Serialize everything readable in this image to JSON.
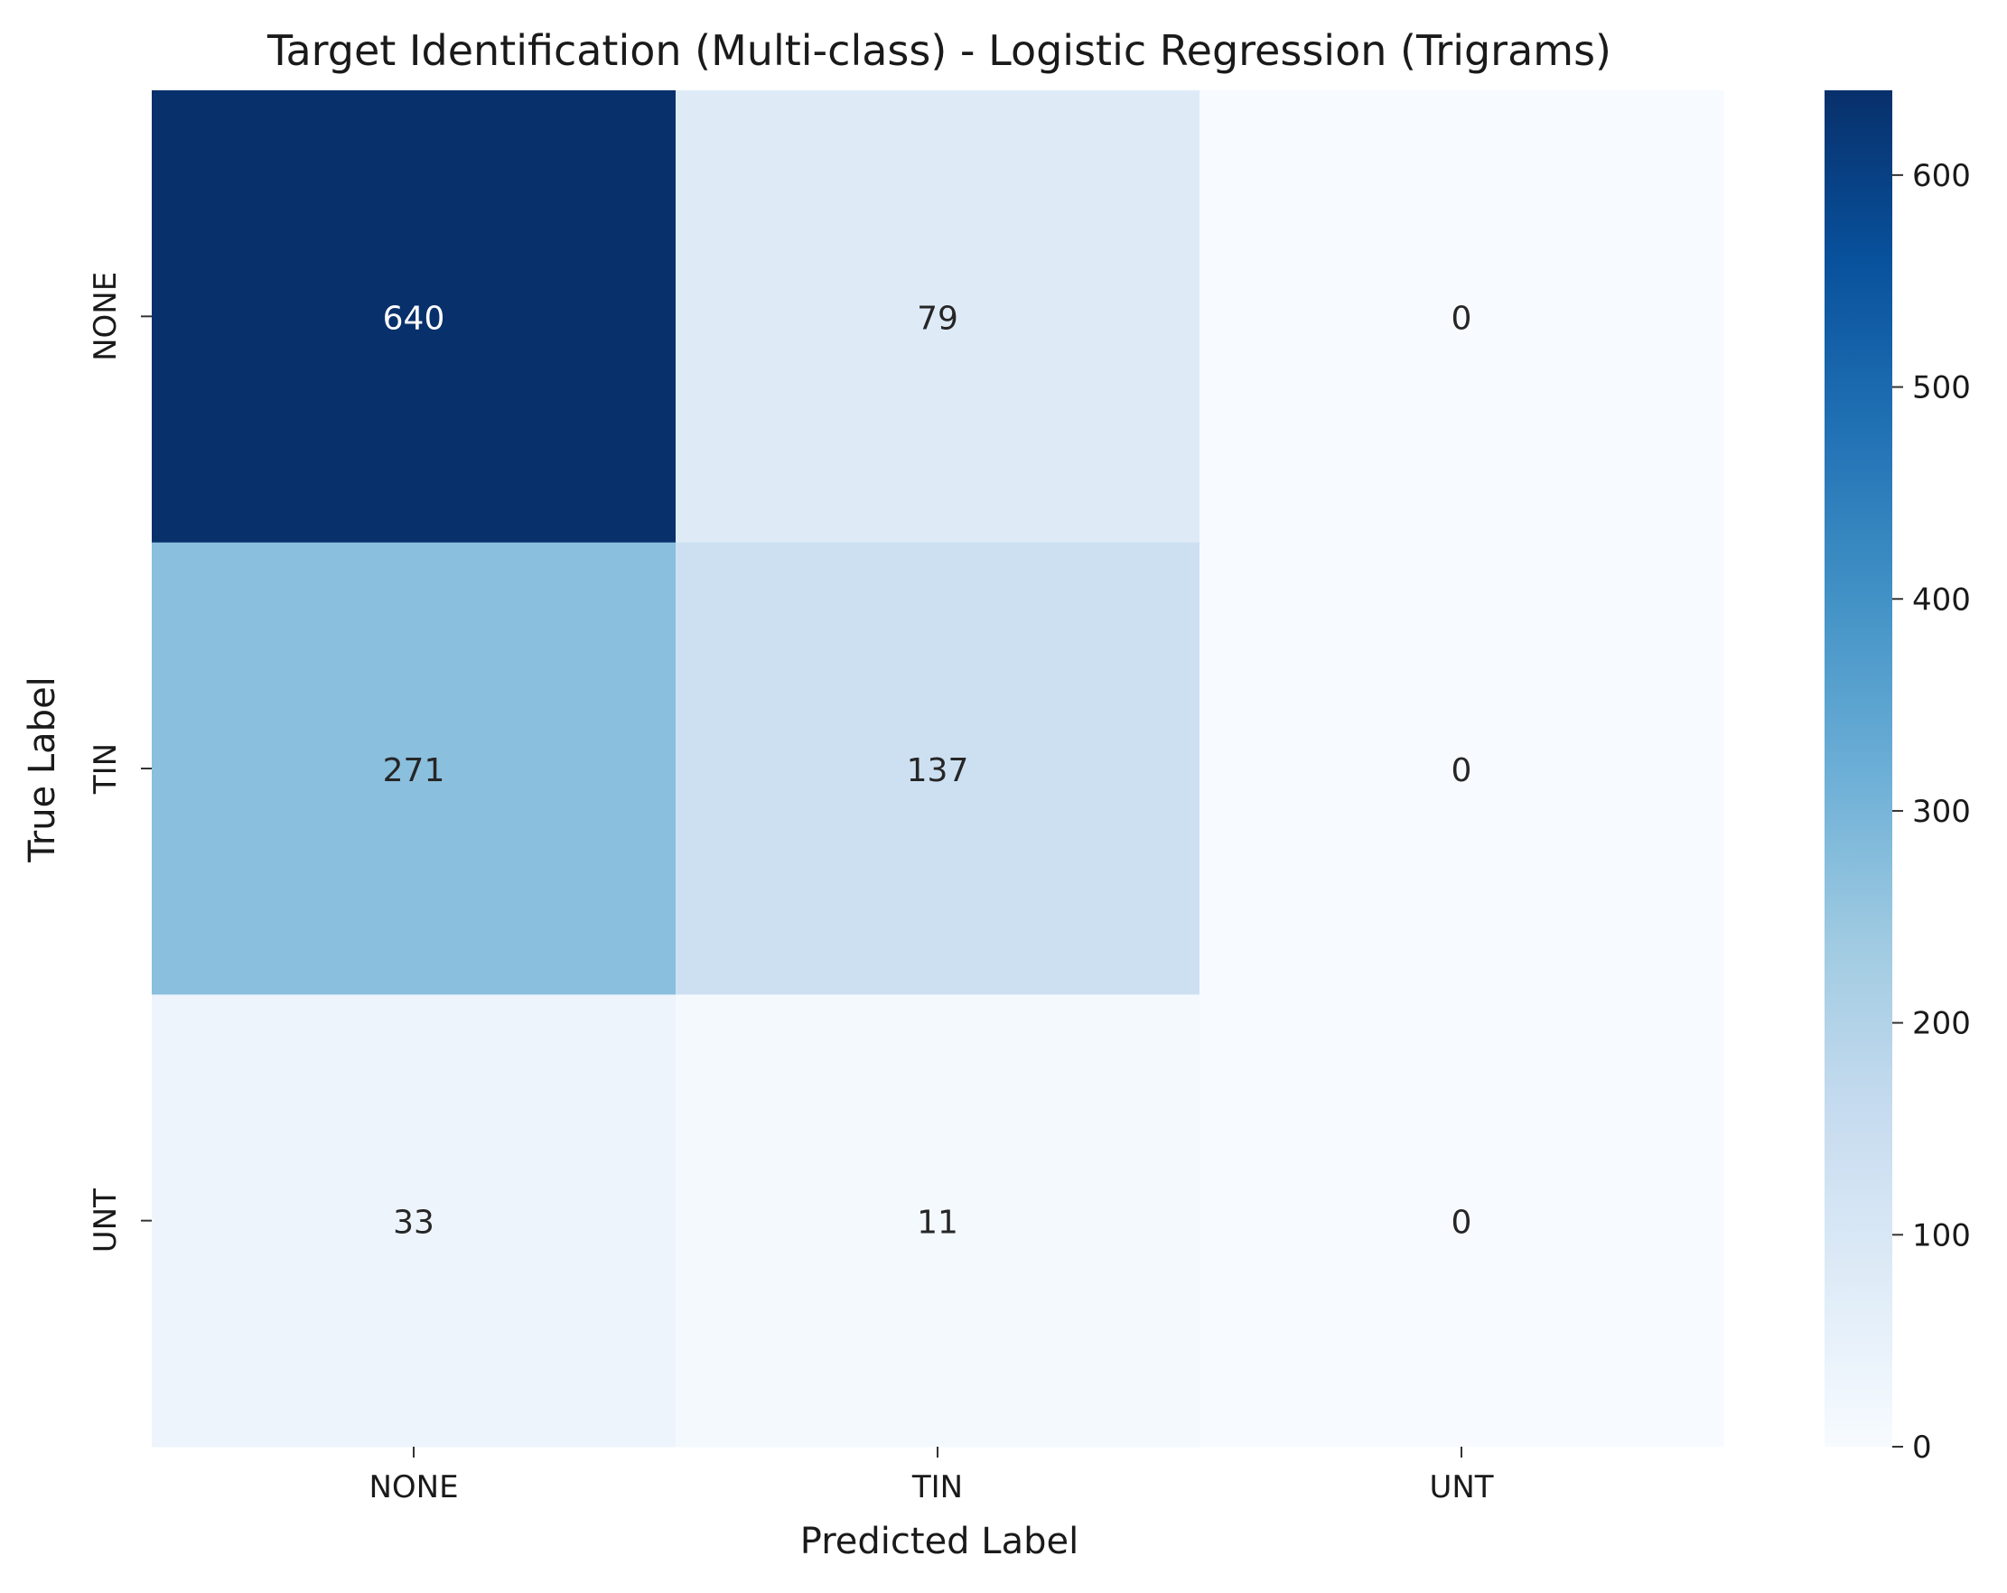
{
  "chart_data": {
    "type": "heatmap",
    "title": "Target Identification (Multi-class) - Logistic Regression (Trigrams)",
    "xlabel": "Predicted Label",
    "ylabel": "True Label",
    "x_categories": [
      "NONE",
      "TIN",
      "UNT"
    ],
    "y_categories": [
      "NONE",
      "TIN",
      "UNT"
    ],
    "values": [
      [
        640,
        79,
        0
      ],
      [
        271,
        137,
        0
      ],
      [
        33,
        11,
        0
      ]
    ],
    "colormap": "Blues",
    "colorbar": {
      "range": [
        0,
        640
      ],
      "ticks": [
        0,
        100,
        200,
        300,
        400,
        500,
        600
      ]
    },
    "annotations": true
  }
}
